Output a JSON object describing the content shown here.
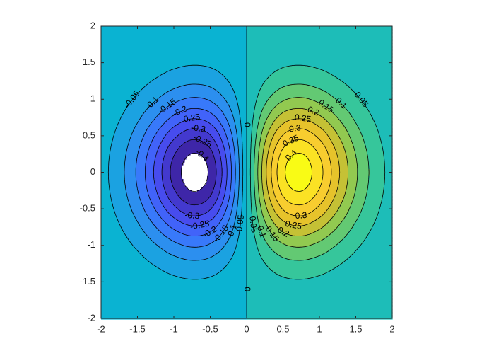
{
  "chart_data": {
    "type": "contour",
    "x": [
      -2,
      -1.75,
      -1.5,
      -1.25,
      -1,
      -0.75,
      -0.5,
      -0.25,
      0,
      0.25,
      0.5,
      0.75,
      1,
      1.25,
      1.5,
      1.75,
      2
    ],
    "y": [
      -2,
      -1.75,
      -1.5,
      -1.25,
      -1,
      -0.75,
      -0.5,
      -0.25,
      0,
      0.25,
      0.5,
      0.75,
      1,
      1.25,
      1.5,
      1.75,
      2
    ],
    "z": [
      [
        -0.0007,
        -0.0015,
        -0.0029,
        -0.0048,
        -0.0067,
        -0.0078,
        -0.0071,
        -0.0043,
        0,
        0.0043,
        0.0071,
        0.0078,
        0.0067,
        0.0048,
        0.0029,
        0.0015,
        0.0007
      ],
      [
        -0.0017,
        -0.0038,
        -0.0074,
        -0.0123,
        -0.0172,
        -0.02,
        -0.0182,
        -0.011,
        0,
        0.011,
        0.0182,
        0.02,
        0.0172,
        0.0123,
        0.0074,
        0.0038,
        0.0017
      ],
      [
        -0.0039,
        -0.0086,
        -0.0167,
        -0.0276,
        -0.0388,
        -0.045,
        -0.041,
        -0.0247,
        0,
        0.0247,
        0.041,
        0.045,
        0.0388,
        0.0276,
        0.0167,
        0.0086,
        0.0039
      ],
      [
        -0.0077,
        -0.0171,
        -0.0331,
        -0.0549,
        -0.0771,
        -0.0896,
        -0.0816,
        -0.0492,
        0,
        0.0492,
        0.0816,
        0.0896,
        0.0771,
        0.0549,
        0.0331,
        0.0171,
        0.0077
      ],
      [
        -0.0135,
        -0.0301,
        -0.0582,
        -0.0964,
        -0.1354,
        -0.1572,
        -0.1433,
        -0.0864,
        0,
        0.0864,
        0.1433,
        0.1572,
        0.1354,
        0.0964,
        0.0582,
        0.0301,
        0.0135
      ],
      [
        -0.0209,
        -0.0466,
        -0.0901,
        -0.1493,
        -0.2096,
        -0.2435,
        -0.2219,
        -0.1338,
        0,
        0.1338,
        0.2219,
        0.2435,
        0.2096,
        0.1493,
        0.0901,
        0.0466,
        0.0209
      ],
      [
        -0.0285,
        -0.0637,
        -0.1231,
        -0.204,
        -0.2865,
        -0.3329,
        -0.3033,
        -0.1829,
        0,
        0.1829,
        0.3033,
        0.3329,
        0.2865,
        0.204,
        0.1231,
        0.0637,
        0.0285
      ],
      [
        -0.0344,
        -0.0768,
        -0.1485,
        -0.2461,
        -0.3456,
        -0.4015,
        -0.3658,
        -0.2206,
        0,
        0.2206,
        0.3658,
        0.4015,
        0.3456,
        0.2461,
        0.1485,
        0.0768,
        0.0344
      ],
      [
        -0.0366,
        -0.0818,
        -0.1581,
        -0.262,
        -0.3679,
        -0.4274,
        -0.3894,
        -0.2348,
        0,
        0.2348,
        0.3894,
        0.4274,
        0.3679,
        0.262,
        0.1581,
        0.0818,
        0.0366
      ],
      [
        -0.0344,
        -0.0768,
        -0.1485,
        -0.2461,
        -0.3456,
        -0.4015,
        -0.3658,
        -0.2206,
        0,
        0.2206,
        0.3658,
        0.4015,
        0.3456,
        0.2461,
        0.1485,
        0.0768,
        0.0344
      ],
      [
        -0.0285,
        -0.0637,
        -0.1231,
        -0.204,
        -0.2865,
        -0.3329,
        -0.3033,
        -0.1829,
        0,
        0.1829,
        0.3033,
        0.3329,
        0.2865,
        0.204,
        0.1231,
        0.0637,
        0.0285
      ],
      [
        -0.0209,
        -0.0466,
        -0.0901,
        -0.1493,
        -0.2096,
        -0.2435,
        -0.2219,
        -0.1338,
        0,
        0.1338,
        0.2219,
        0.2435,
        0.2096,
        0.1493,
        0.0901,
        0.0466,
        0.0209
      ],
      [
        -0.0135,
        -0.0301,
        -0.0582,
        -0.0964,
        -0.1354,
        -0.1572,
        -0.1433,
        -0.0864,
        0,
        0.0864,
        0.1433,
        0.1572,
        0.1354,
        0.0964,
        0.0582,
        0.0301,
        0.0135
      ],
      [
        -0.0077,
        -0.0171,
        -0.0331,
        -0.0549,
        -0.0771,
        -0.0896,
        -0.0816,
        -0.0492,
        0,
        0.0492,
        0.0816,
        0.0896,
        0.0771,
        0.0549,
        0.0331,
        0.0171,
        0.0077
      ],
      [
        -0.0039,
        -0.0086,
        -0.0167,
        -0.0276,
        -0.0388,
        -0.045,
        -0.041,
        -0.0247,
        0,
        0.0247,
        0.041,
        0.045,
        0.0388,
        0.0276,
        0.0167,
        0.0086,
        0.0039
      ],
      [
        -0.0017,
        -0.0038,
        -0.0074,
        -0.0123,
        -0.0172,
        -0.02,
        -0.0182,
        -0.011,
        0,
        0.011,
        0.0182,
        0.02,
        0.0172,
        0.0123,
        0.0074,
        0.0038,
        0.0017
      ],
      [
        -0.0007,
        -0.0015,
        -0.0029,
        -0.0048,
        -0.0067,
        -0.0078,
        -0.0071,
        -0.0043,
        0,
        0.0043,
        0.0071,
        0.0078,
        0.0067,
        0.0048,
        0.0029,
        0.0015,
        0.0007
      ]
    ],
    "levels": [
      -0.4,
      -0.35,
      -0.3,
      -0.25,
      -0.2,
      -0.15,
      -0.1,
      -0.05,
      0,
      0.05,
      0.1,
      0.15,
      0.2,
      0.25,
      0.3,
      0.35,
      0.4
    ],
    "colors": [
      "#3e26a8",
      "#4339ce",
      "#474cee",
      "#4163f9",
      "#3879fa",
      "#2c8fef",
      "#1ba2e1",
      "#0ab3d2",
      "#1dbdb8",
      "#36c69b",
      "#63c973",
      "#92c950",
      "#c5c135",
      "#e6c32b",
      "#f8cd2f",
      "#fbe224",
      "#f9fb15"
    ],
    "line_color": "#000000",
    "xlim": [
      -2,
      2
    ],
    "ylim": [
      -2,
      2
    ],
    "xticks": [
      -2,
      -1.5,
      -1,
      -0.5,
      0,
      0.5,
      1,
      1.5,
      2
    ],
    "yticks": [
      -2,
      -1.5,
      -1,
      -0.5,
      0,
      0.5,
      1,
      1.5,
      2
    ]
  }
}
